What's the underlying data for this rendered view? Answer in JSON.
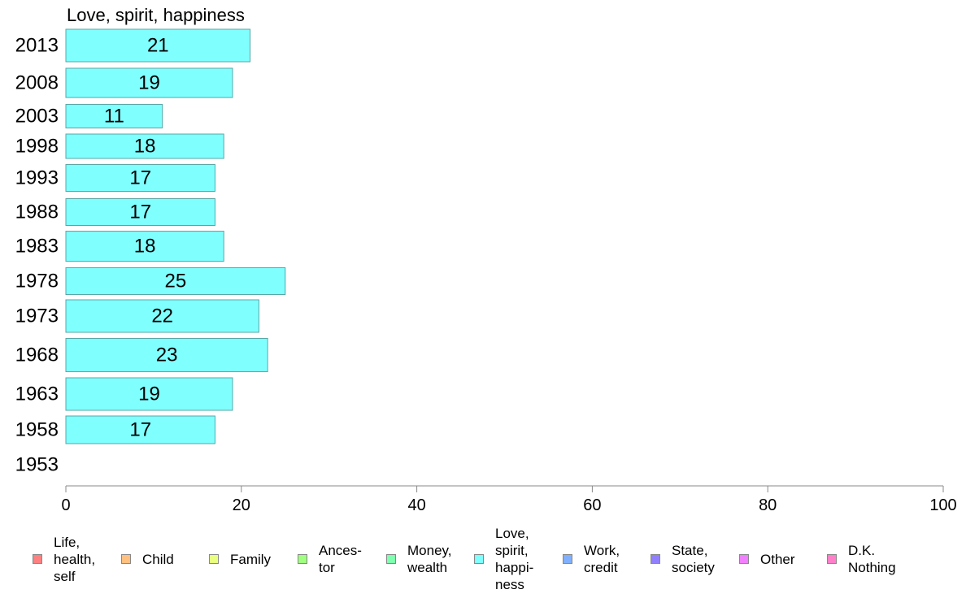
{
  "chart_data": {
    "type": "bar",
    "orientation": "horizontal",
    "title": "Love, spirit, happiness",
    "xlabel": "",
    "ylabel": "",
    "xlim": [
      0,
      100
    ],
    "xticks": [
      "0",
      "20",
      "40",
      "60",
      "80",
      "100"
    ],
    "grid": false,
    "categories": [
      "2013",
      "2008",
      "2003",
      "1998",
      "1993",
      "1988",
      "1983",
      "1978",
      "1973",
      "1968",
      "1963",
      "1958",
      "1953"
    ],
    "values": [
      21,
      19,
      11,
      18,
      17,
      17,
      18,
      25,
      22,
      23,
      19,
      17,
      null
    ],
    "bar_color": "#80ffff",
    "bar_border": "#5aa6a6",
    "legend_position": "bottom",
    "legend": [
      {
        "label": "Life,\nhealth,\nself",
        "color": "#ff8080"
      },
      {
        "label": "Child",
        "color": "#ffc080"
      },
      {
        "label": "Family",
        "color": "#e8ff80"
      },
      {
        "label": "Ances-\ntor",
        "color": "#a0ff80"
      },
      {
        "label": "Money,\nwealth",
        "color": "#80ffb0"
      },
      {
        "label": "Love,\nspirit,\nhappi-\nness",
        "color": "#80ffff"
      },
      {
        "label": "Work,\ncredit",
        "color": "#80b0ff"
      },
      {
        "label": "State,\nsociety",
        "color": "#9080ff"
      },
      {
        "label": "Other",
        "color": "#f080ff"
      },
      {
        "label": "D.K.\nNothing",
        "color": "#ff80c8"
      }
    ]
  }
}
